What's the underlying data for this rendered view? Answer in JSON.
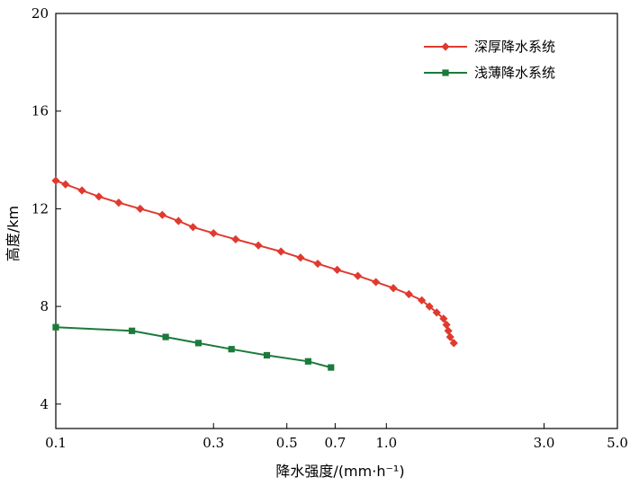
{
  "chart_data": {
    "type": "line",
    "xlabel": "降水强度/(mm·h⁻¹)",
    "ylabel": "高度/km",
    "xscale": "log",
    "xlim": [
      0.1,
      5.0
    ],
    "ylim": [
      3,
      20
    ],
    "xticks": [
      {
        "value": 0.1,
        "label": "0.1"
      },
      {
        "value": 0.3,
        "label": "0.3"
      },
      {
        "value": 0.5,
        "label": "0.5"
      },
      {
        "value": 0.7,
        "label": "0.7"
      },
      {
        "value": 1.0,
        "label": "1.0"
      },
      {
        "value": 3.0,
        "label": "3.0"
      },
      {
        "value": 5.0,
        "label": "5.0"
      }
    ],
    "yticks": [
      {
        "value": 4,
        "label": "4"
      },
      {
        "value": 8,
        "label": "8"
      },
      {
        "value": 12,
        "label": "12"
      },
      {
        "value": 16,
        "label": "16"
      },
      {
        "value": 20,
        "label": "20"
      }
    ],
    "legend_position": "top-right",
    "series": [
      {
        "name": "深厚降水系统",
        "color": "#e03a2f",
        "marker": "diamond",
        "points": [
          [
            0.1,
            13.15
          ],
          [
            0.107,
            13.0
          ],
          [
            0.12,
            12.75
          ],
          [
            0.135,
            12.5
          ],
          [
            0.155,
            12.25
          ],
          [
            0.18,
            12.0
          ],
          [
            0.21,
            11.75
          ],
          [
            0.235,
            11.5
          ],
          [
            0.26,
            11.25
          ],
          [
            0.3,
            11.0
          ],
          [
            0.35,
            10.75
          ],
          [
            0.41,
            10.5
          ],
          [
            0.48,
            10.25
          ],
          [
            0.55,
            10.0
          ],
          [
            0.62,
            9.75
          ],
          [
            0.71,
            9.5
          ],
          [
            0.82,
            9.25
          ],
          [
            0.93,
            9.0
          ],
          [
            1.05,
            8.75
          ],
          [
            1.17,
            8.5
          ],
          [
            1.28,
            8.25
          ],
          [
            1.35,
            8.0
          ],
          [
            1.42,
            7.75
          ],
          [
            1.49,
            7.5
          ],
          [
            1.52,
            7.25
          ],
          [
            1.54,
            7.0
          ],
          [
            1.56,
            6.75
          ],
          [
            1.6,
            6.5
          ]
        ]
      },
      {
        "name": "浅薄降水系统",
        "color": "#1c7a3b",
        "marker": "square",
        "points": [
          [
            0.1,
            7.15
          ],
          [
            0.17,
            7.0
          ],
          [
            0.215,
            6.75
          ],
          [
            0.27,
            6.5
          ],
          [
            0.34,
            6.25
          ],
          [
            0.435,
            6.0
          ],
          [
            0.58,
            5.75
          ],
          [
            0.68,
            5.5
          ]
        ]
      }
    ]
  }
}
